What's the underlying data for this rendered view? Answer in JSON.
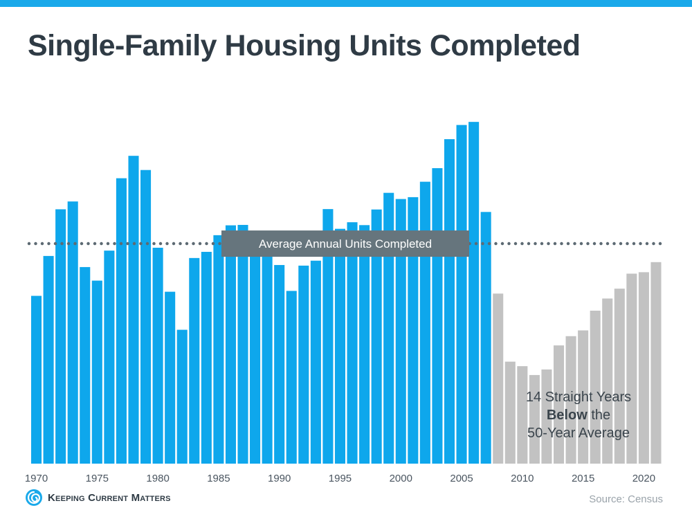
{
  "title": "Single-Family Housing Units Completed",
  "source": "Source: Census",
  "logo": {
    "text": "Keeping Current Matters",
    "icon": "kcm-swirl-icon"
  },
  "colors": {
    "top_bar": "#1aa9ea",
    "above_average": "#0ea7ec",
    "below_average": "#c2c2c2",
    "average_line": "#5d6a73",
    "average_label_bg": "#66757d",
    "title": "#2f3b45"
  },
  "chart_data": {
    "type": "bar",
    "title": "Single-Family Housing Units Completed",
    "xlabel": "",
    "ylabel": "",
    "ylim": [
      0,
      1750
    ],
    "grid": false,
    "x_ticks": [
      1970,
      1975,
      1980,
      1985,
      1990,
      1995,
      2000,
      2005,
      2010,
      2015,
      2020
    ],
    "categories": [
      1970,
      1971,
      1972,
      1973,
      1974,
      1975,
      1976,
      1977,
      1978,
      1979,
      1980,
      1981,
      1982,
      1983,
      1984,
      1985,
      1986,
      1987,
      1988,
      1989,
      1990,
      1991,
      1992,
      1993,
      1994,
      1995,
      1996,
      1997,
      1998,
      1999,
      2000,
      2001,
      2002,
      2003,
      2004,
      2005,
      2006,
      2007,
      2008,
      2009,
      2010,
      2011,
      2012,
      2013,
      2014,
      2015,
      2016,
      2017,
      2018,
      2019,
      2020,
      2021
    ],
    "values": [
      816,
      1010,
      1237,
      1275,
      956,
      890,
      1036,
      1388,
      1497,
      1428,
      1050,
      836,
      651,
      1000,
      1030,
      1111,
      1159,
      1161,
      1101,
      1029,
      966,
      840,
      963,
      987,
      1238,
      1142,
      1174,
      1160,
      1236,
      1317,
      1287,
      1296,
      1371,
      1437,
      1578,
      1647,
      1662,
      1224,
      827,
      496,
      474,
      431,
      458,
      575,
      620,
      648,
      744,
      803,
      851,
      924,
      931,
      980
    ],
    "series": [
      {
        "name": "",
        "range": [
          1970,
          2007
        ],
        "color": "#0ea7ec"
      },
      {
        "name": "",
        "range": [
          2008,
          2021
        ],
        "color": "#c2c2c2"
      }
    ],
    "average": {
      "value": 1070,
      "label": "Average Annual Units Completed",
      "style": "dotted"
    },
    "annotations": [
      {
        "lines": [
          "14 Straight Years",
          "**Below** the",
          "50-Year Average"
        ],
        "position": "lower-right"
      }
    ]
  }
}
